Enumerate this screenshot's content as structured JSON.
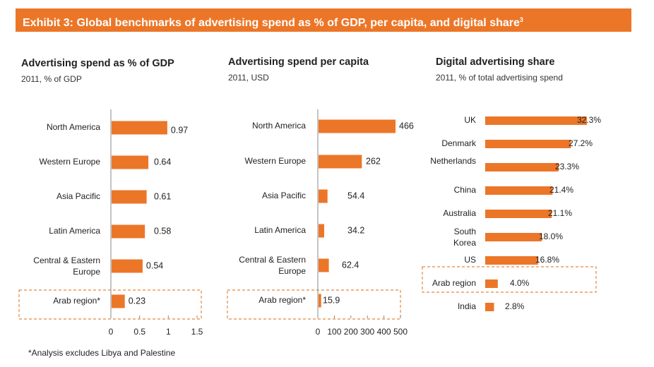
{
  "header": {
    "title": "Exhibit 3: Global benchmarks of advertising spend as % of GDP, per capita, and digital share",
    "sup": "3"
  },
  "colors": {
    "accent": "#ec7628",
    "highlight_border": "#e5883f",
    "axis": "#888888"
  },
  "panels": [
    {
      "title": "Advertising spend as % of GDP",
      "subtitle": "2011, % of GDP"
    },
    {
      "title": "Advertising spend per capita",
      "subtitle": "2011, USD"
    },
    {
      "title": "Digital advertising share",
      "subtitle": "2011, % of total advertising spend"
    }
  ],
  "chart_data": [
    {
      "type": "bar",
      "orientation": "horizontal",
      "title": "Advertising spend as % of GDP",
      "subtitle": "2011, % of GDP",
      "categories": [
        "North America",
        "Western Europe",
        "Asia Pacific",
        "Latin America",
        "Central & Eastern Europe",
        "Arab region*"
      ],
      "values": [
        0.97,
        0.64,
        0.61,
        0.58,
        0.54,
        0.23
      ],
      "value_labels": [
        "0.97",
        "0.64",
        "0.61",
        "0.58",
        "0.54",
        "0.23"
      ],
      "xlim": [
        0,
        1.5
      ],
      "xticks": [
        0,
        0.5,
        1,
        1.5
      ],
      "xtick_labels": [
        "0",
        "0.5",
        "1",
        "1.5"
      ],
      "highlighted": "Arab region*"
    },
    {
      "type": "bar",
      "orientation": "horizontal",
      "title": "Advertising spend per capita",
      "subtitle": "2011, USD",
      "categories": [
        "North America",
        "Western Europe",
        "Asia Pacific",
        "Latin America",
        "Central & Eastern Europe",
        "Arab region*"
      ],
      "values": [
        466,
        262,
        54.4,
        34.2,
        62.4,
        15.9
      ],
      "value_labels": [
        "466",
        "262",
        "54.4",
        "34.2",
        "62.4",
        "15.9"
      ],
      "xlim": [
        0,
        500
      ],
      "xticks": [
        0,
        100,
        200,
        300,
        400,
        500
      ],
      "xtick_labels": [
        "0",
        "100",
        "200",
        "300",
        "400",
        "500"
      ],
      "highlighted": "Arab region*"
    },
    {
      "type": "bar",
      "orientation": "horizontal",
      "title": "Digital advertising share",
      "subtitle": "2011, % of total advertising spend",
      "categories": [
        "UK",
        "Denmark",
        "Netherlands",
        "China",
        "Australia",
        "South Korea",
        "US",
        "Arab region",
        "India"
      ],
      "values": [
        32.3,
        27.2,
        23.3,
        21.4,
        21.1,
        18.0,
        16.8,
        4.0,
        2.8
      ],
      "value_labels": [
        "32.3%",
        "27.2%",
        "23.3%",
        "21.4%",
        "21.1%",
        "18.0%",
        "16.8%",
        "4.0%",
        "2.8%"
      ],
      "xlim": [
        0,
        35
      ],
      "highlighted": "Arab region"
    }
  ],
  "footnote": "*Analysis excludes Libya and Palestine"
}
